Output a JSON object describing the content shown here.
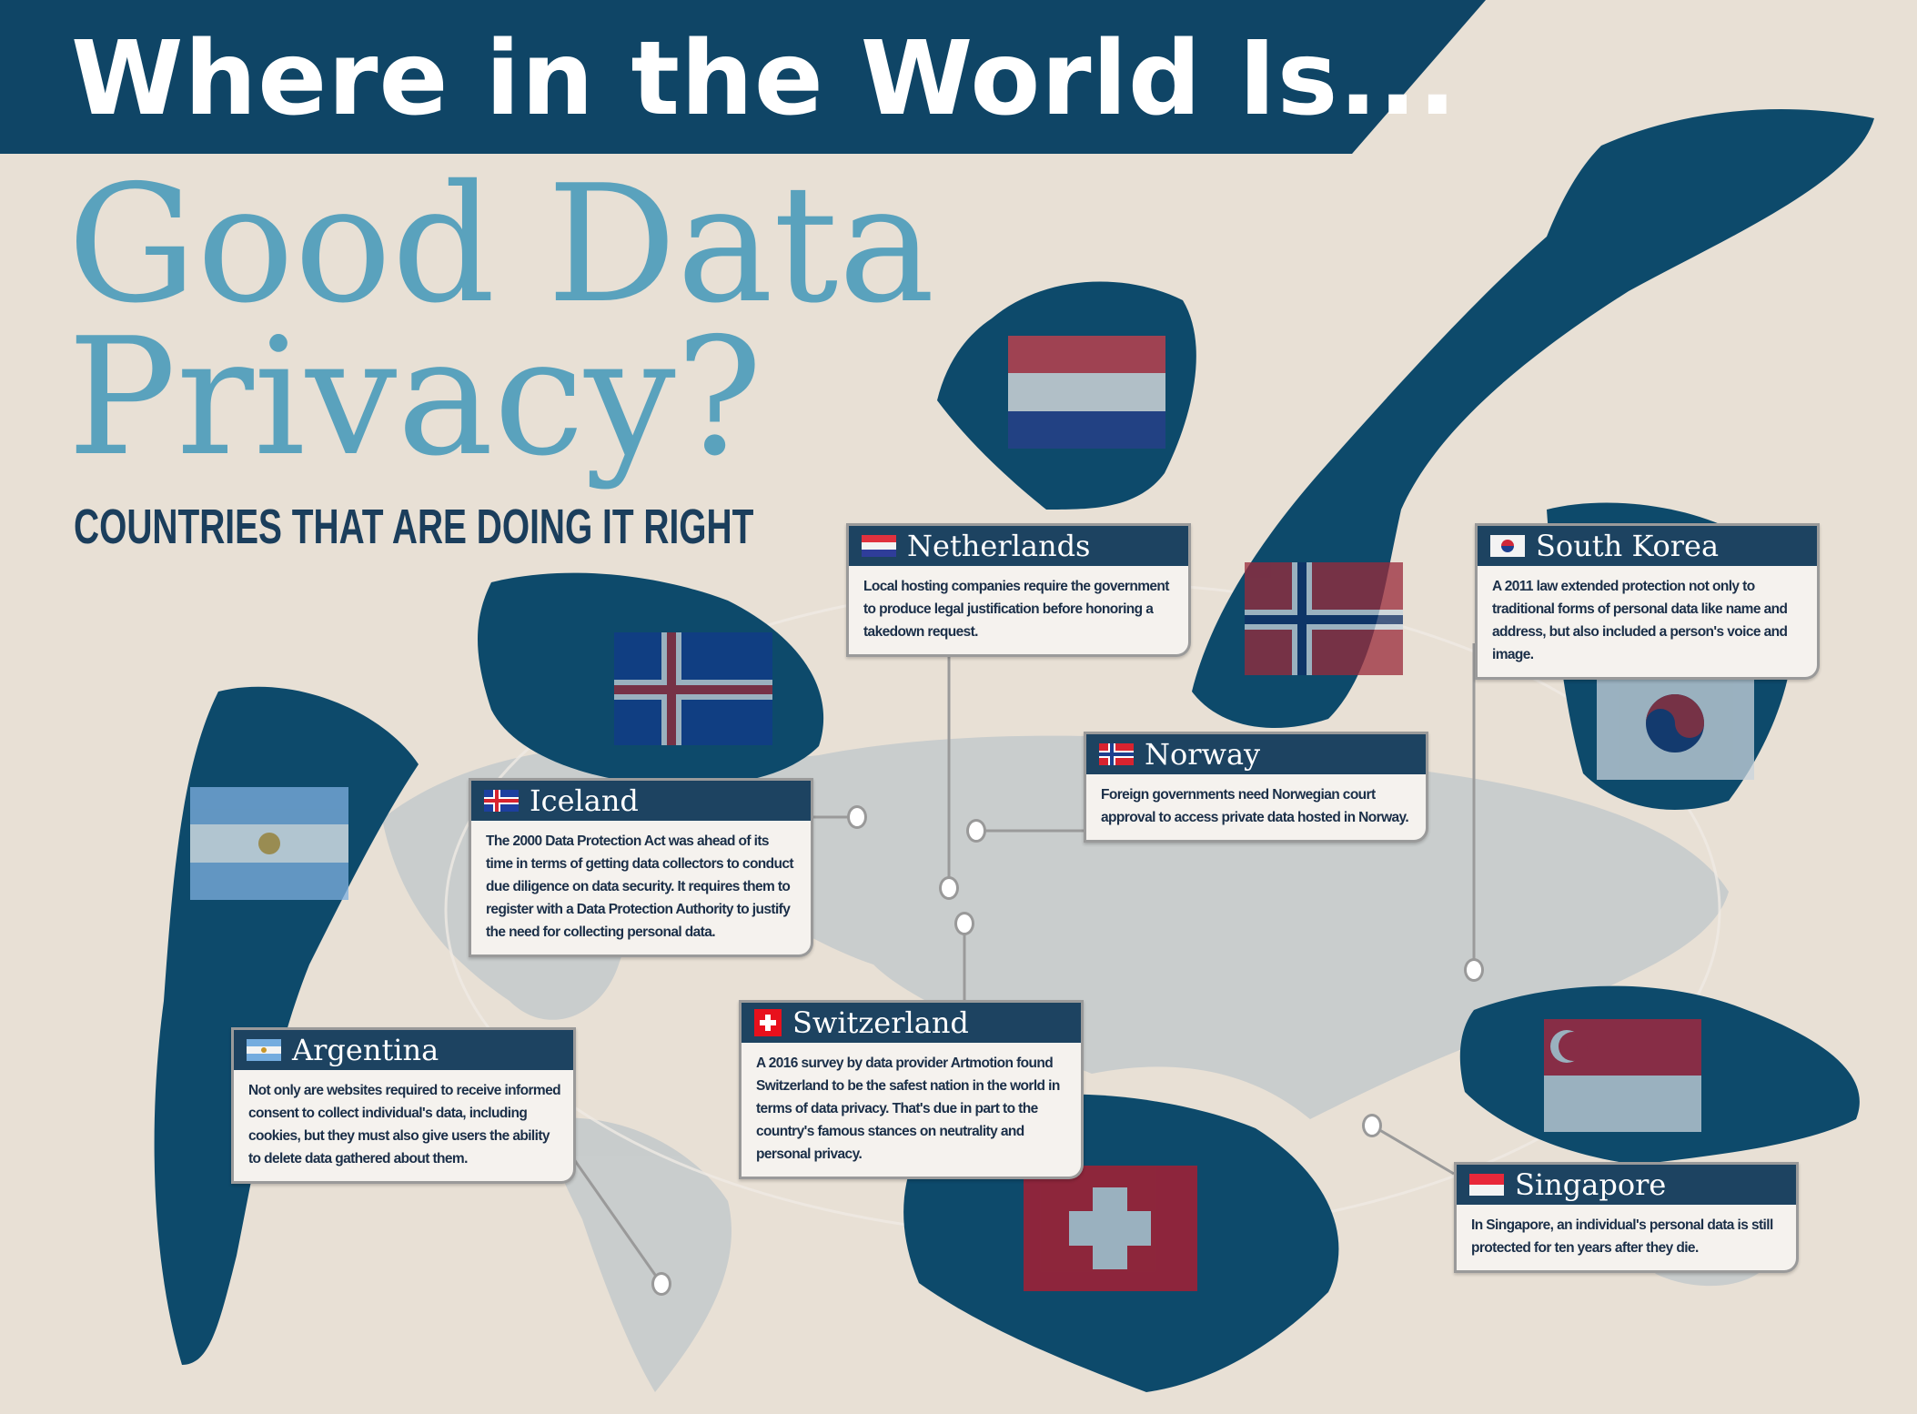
{
  "header": {
    "title": "Where in the World Is...",
    "headline_line1": "Good Data",
    "headline_line2": "Privacy?",
    "subtitle": "COUNTRIES THAT ARE DOING IT RIGHT"
  },
  "colors": {
    "banner": "#0f4566",
    "headline": "#5aa2bd",
    "land_dark": "#0d4a6b",
    "background": "#e8e0d5",
    "card_header": "#1d4361"
  },
  "countries": [
    {
      "name": "Netherlands",
      "flag": "netherlands-flag-icon",
      "text": "Local hosting companies require the government to produce legal justification before honoring a takedown request."
    },
    {
      "name": "South Korea",
      "flag": "south-korea-flag-icon",
      "text": "A 2011 law extended protection not only to traditional forms of personal data like name and address, but also included a person's voice and image."
    },
    {
      "name": "Norway",
      "flag": "norway-flag-icon",
      "text": "Foreign governments need Norwegian court approval to access private data hosted in Norway."
    },
    {
      "name": "Iceland",
      "flag": "iceland-flag-icon",
      "text": "The 2000 Data Protection Act was ahead of its time in terms of getting data collectors to conduct due diligence on data security. It requires them to register with a Data Protection Authority to justify the need for collecting personal data."
    },
    {
      "name": "Switzerland",
      "flag": "switzerland-flag-icon",
      "text": "A 2016 survey by data provider Artmotion found Switzerland to be the safest nation in the world in terms of data privacy. That's due in part to the country's famous stances on neutrality and personal privacy."
    },
    {
      "name": "Argentina",
      "flag": "argentina-flag-icon",
      "text": "Not only are websites required to receive informed consent to collect individual's data, including cookies, but they must also give users the ability to delete data gathered about them."
    },
    {
      "name": "Singapore",
      "flag": "singapore-flag-icon",
      "text": "In Singapore, an individual's personal data is still protected for ten years after they die."
    }
  ]
}
